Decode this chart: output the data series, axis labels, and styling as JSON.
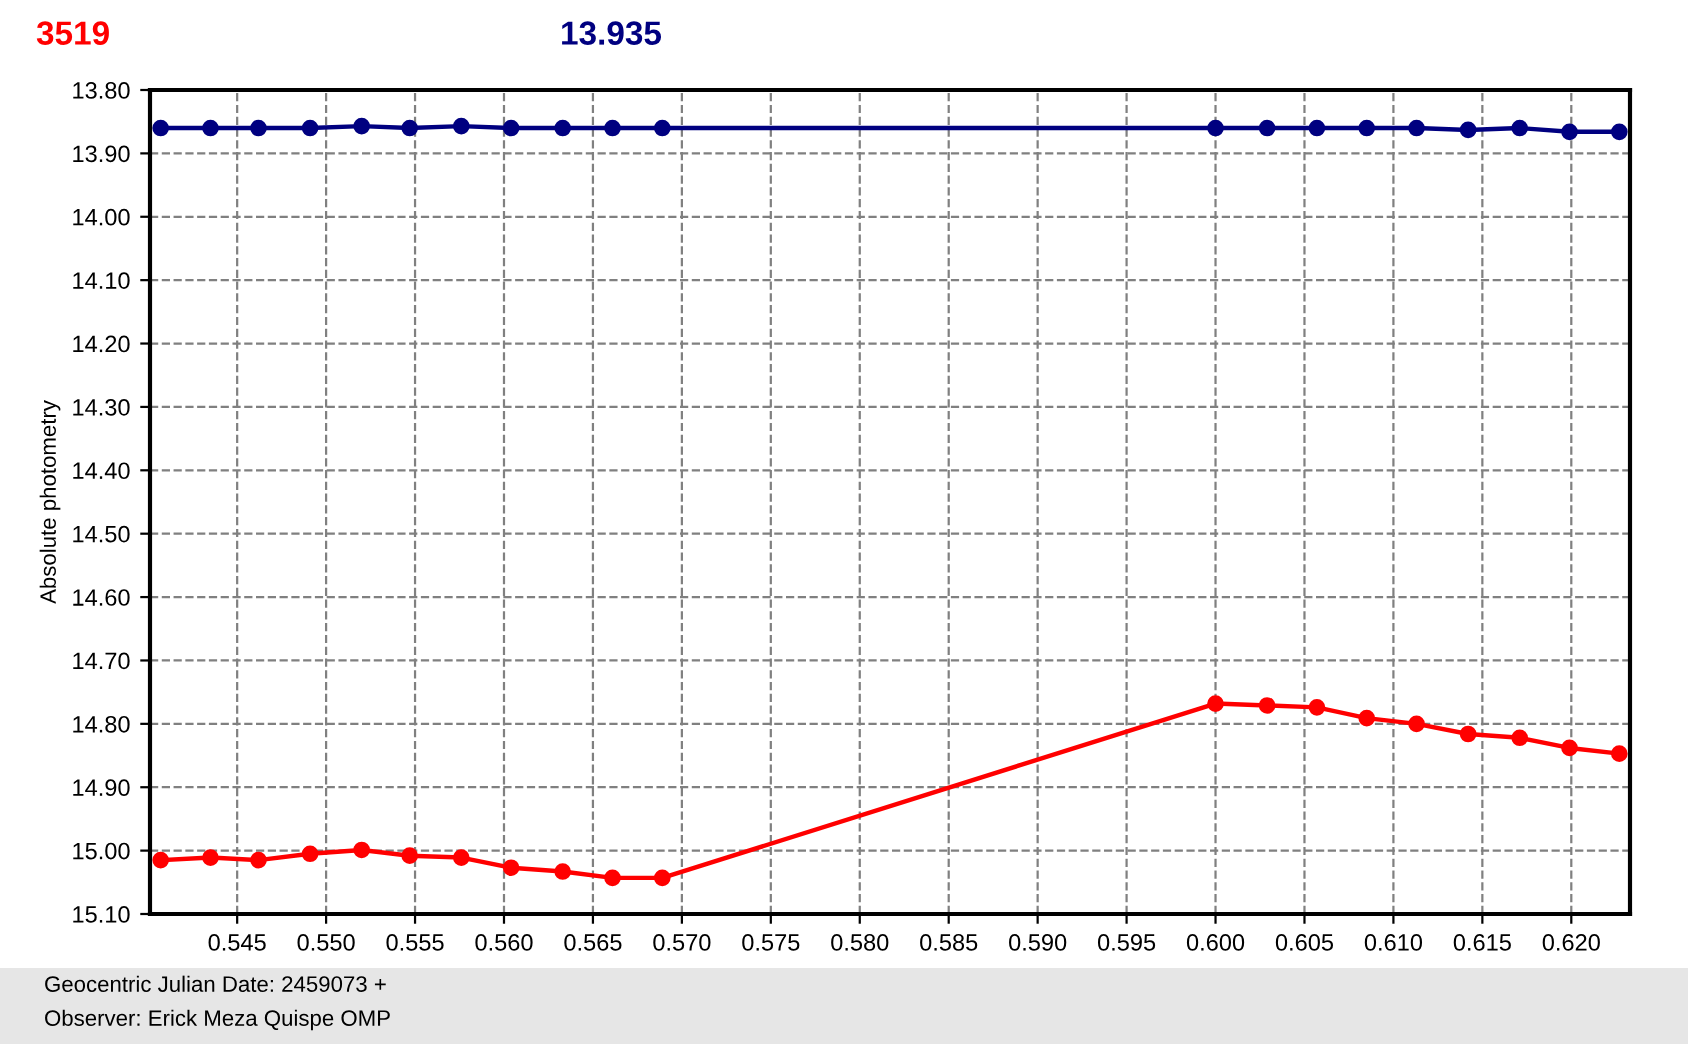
{
  "chart_data": {
    "type": "line",
    "ylabel": "Absolute photometry",
    "x": [
      0.5407,
      0.5435,
      0.5462,
      0.5491,
      0.552,
      0.5547,
      0.5576,
      0.5604,
      0.5633,
      0.5661,
      0.5689,
      0.6,
      0.6029,
      0.6057,
      0.6085,
      0.6113,
      0.6142,
      0.6171,
      0.6199,
      0.6227
    ],
    "series": [
      {
        "name": "3519",
        "color": "#ff0000",
        "values": [
          15.015,
          15.011,
          15.015,
          15.005,
          14.999,
          15.008,
          15.011,
          15.027,
          15.033,
          15.043,
          15.043,
          14.768,
          14.771,
          14.774,
          14.791,
          14.8,
          14.816,
          14.822,
          14.838,
          14.847
        ]
      },
      {
        "name": "13.935",
        "color": "#000080",
        "values": [
          13.86,
          13.86,
          13.86,
          13.86,
          13.857,
          13.86,
          13.857,
          13.86,
          13.86,
          13.86,
          13.86,
          13.86,
          13.86,
          13.86,
          13.86,
          13.86,
          13.863,
          13.86,
          13.866,
          13.866
        ]
      }
    ],
    "xlim": [
      0.5401,
      0.6233
    ],
    "ylim": [
      15.1,
      13.8
    ],
    "xticks": [
      0.545,
      {
        "value": 0.55,
        "label": "0.550"
      },
      0.555,
      {
        "value": 0.56,
        "label": "0.560"
      },
      0.565,
      {
        "value": 0.57,
        "label": "0.570"
      },
      0.575,
      {
        "value": 0.58,
        "label": "0.580"
      },
      0.585,
      {
        "value": 0.59,
        "label": "0.590"
      },
      0.595,
      {
        "value": 0.6,
        "label": "0.600"
      },
      0.605,
      {
        "value": 0.61,
        "label": "0.610"
      },
      0.615,
      {
        "value": 0.62,
        "label": "0.620"
      }
    ],
    "yticks": [
      {
        "value": 13.8,
        "label": "13.80"
      },
      {
        "value": 13.9,
        "label": "13.90"
      },
      {
        "value": 14.0,
        "label": "14.00"
      },
      {
        "value": 14.1,
        "label": "14.10"
      },
      {
        "value": 14.2,
        "label": "14.20"
      },
      {
        "value": 14.3,
        "label": "14.30"
      },
      {
        "value": 14.4,
        "label": "14.40"
      },
      {
        "value": 14.5,
        "label": "14.50"
      },
      {
        "value": 14.6,
        "label": "14.60"
      },
      {
        "value": 14.7,
        "label": "14.70"
      },
      {
        "value": 14.8,
        "label": "14.80"
      },
      {
        "value": 14.9,
        "label": "14.90"
      },
      {
        "value": 15.0,
        "label": "15.00"
      },
      {
        "value": 15.1,
        "label": "15.10"
      }
    ],
    "grid": true,
    "marker": "circle",
    "line_style": "solid",
    "annotations": [
      "Geocentric Julian Date: 2459073 +",
      "Observer: Erick Meza Quispe OMP"
    ]
  }
}
